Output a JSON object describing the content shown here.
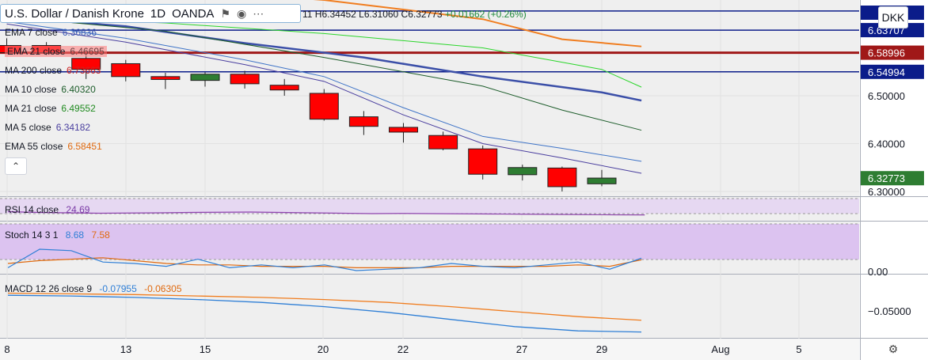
{
  "header": {
    "symbol_title": "U.S. Dollar / Danish Krone",
    "interval": "1D",
    "broker": "OANDA",
    "ohlc": "11  H6.34452  L6.31060  C6.32773",
    "change": "+0.01662 (+0.26%)"
  },
  "currency_badge": "DKK",
  "indicators": [
    {
      "label": "EMA 7 close",
      "value": "6.36836",
      "color": "#3b5bb5"
    },
    {
      "label": "EMA 21 close",
      "value": "6.46695",
      "color": "#6b3f3f"
    },
    {
      "label": "MA 200 close",
      "value": "6.73663",
      "color": "#cc2222"
    },
    {
      "label": "MA 10 close",
      "value": "6.40320",
      "color": "#1c5c2a"
    },
    {
      "label": "MA 21 close",
      "value": "6.49552",
      "color": "#1f8a1f"
    },
    {
      "label": "MA 5 close",
      "value": "6.34182",
      "color": "#4a3f9f"
    },
    {
      "label": "EMA 55 close",
      "value": "6.58451",
      "color": "#e06a10"
    }
  ],
  "price_labels": [
    {
      "text": "6.63707",
      "color": "#0b1c8a"
    },
    {
      "text": "6.58996",
      "color": "#a01818"
    },
    {
      "text": "6.54994",
      "color": "#0b1c8a"
    },
    {
      "text": "6.32773",
      "color": "#2e7d32"
    }
  ],
  "rsi": {
    "label": "RSI 14 close",
    "value": "24.69"
  },
  "stoch": {
    "label": "Stoch 14 3 1",
    "k": "8.68",
    "d": "7.58"
  },
  "macd": {
    "label": "MACD 12 26 close 9",
    "macd": "-0.07955",
    "signal": "-0.06305"
  },
  "chart_data": {
    "type": "candlestick",
    "x_ticks": [
      "8",
      "13",
      "15",
      "20",
      "22",
      "27",
      "29",
      "Aug",
      "5"
    ],
    "y_ticks": [
      "6.30000",
      "6.40000",
      "6.50000"
    ],
    "candles": [
      {
        "open": 6.605,
        "high": 6.62,
        "low": 6.59,
        "close": 6.59
      },
      {
        "open": 6.605,
        "high": 6.612,
        "low": 6.585,
        "close": 6.59
      },
      {
        "open": 6.578,
        "high": 6.585,
        "low": 6.535,
        "close": 6.555
      },
      {
        "open": 6.567,
        "high": 6.575,
        "low": 6.53,
        "close": 6.54
      },
      {
        "open": 6.54,
        "high": 6.548,
        "low": 6.514,
        "close": 6.534
      },
      {
        "open": 6.532,
        "high": 6.549,
        "low": 6.519,
        "close": 6.545
      },
      {
        "open": 6.545,
        "high": 6.552,
        "low": 6.515,
        "close": 6.525
      },
      {
        "open": 6.522,
        "high": 6.535,
        "low": 6.5,
        "close": 6.512
      },
      {
        "open": 6.505,
        "high": 6.514,
        "low": 6.448,
        "close": 6.451
      },
      {
        "open": 6.456,
        "high": 6.468,
        "low": 6.418,
        "close": 6.436
      },
      {
        "open": 6.434,
        "high": 6.443,
        "low": 6.402,
        "close": 6.424
      },
      {
        "open": 6.417,
        "high": 6.425,
        "low": 6.386,
        "close": 6.389
      },
      {
        "open": 6.389,
        "high": 6.396,
        "low": 6.325,
        "close": 6.336
      },
      {
        "open": 6.335,
        "high": 6.356,
        "low": 6.323,
        "close": 6.35
      },
      {
        "open": 6.349,
        "high": 6.352,
        "low": 6.3,
        "close": 6.31
      },
      {
        "open": 6.316,
        "high": 6.345,
        "low": 6.311,
        "close": 6.328
      }
    ],
    "up_color": "#2e7d32",
    "down_color": "#ff0000",
    "lines": [
      {
        "name": "EMA 55",
        "color": "#f07d1f",
        "width": 2,
        "points": [
          [
            6.758,
            0
          ],
          [
            6.718,
            5
          ],
          [
            6.7,
            8
          ],
          [
            6.66,
            12
          ],
          [
            6.618,
            14
          ],
          [
            6.603,
            16
          ]
        ]
      },
      {
        "name": "EMA 21",
        "color": "#3b4fa8",
        "width": 2.5,
        "points": [
          [
            6.665,
            0
          ],
          [
            6.645,
            3
          ],
          [
            6.61,
            6
          ],
          [
            6.58,
            9
          ],
          [
            6.54,
            12
          ],
          [
            6.507,
            15
          ],
          [
            6.49,
            16
          ]
        ]
      },
      {
        "name": "MA 21",
        "color": "#2bd62b",
        "width": 1,
        "points": [
          [
            6.665,
            0
          ],
          [
            6.652,
            4
          ],
          [
            6.63,
            8
          ],
          [
            6.6,
            12
          ],
          [
            6.555,
            15
          ],
          [
            6.518,
            16
          ]
        ]
      },
      {
        "name": "MA 10",
        "color": "#1c5c2a",
        "width": 1,
        "points": [
          [
            6.665,
            0
          ],
          [
            6.635,
            4
          ],
          [
            6.58,
            8
          ],
          [
            6.52,
            12
          ],
          [
            6.47,
            14
          ],
          [
            6.428,
            16
          ]
        ]
      },
      {
        "name": "EMA 7",
        "color": "#3e73c7",
        "width": 1,
        "points": [
          [
            6.655,
            0
          ],
          [
            6.62,
            3
          ],
          [
            6.575,
            6
          ],
          [
            6.54,
            8
          ],
          [
            6.475,
            10
          ],
          [
            6.415,
            12
          ],
          [
            6.39,
            14
          ],
          [
            6.363,
            16
          ]
        ]
      },
      {
        "name": "MA 5",
        "color": "#4a3f9f",
        "width": 1,
        "points": [
          [
            6.65,
            0
          ],
          [
            6.612,
            3
          ],
          [
            6.565,
            6
          ],
          [
            6.53,
            8
          ],
          [
            6.46,
            10
          ],
          [
            6.4,
            12
          ],
          [
            6.37,
            14
          ],
          [
            6.338,
            16
          ]
        ]
      }
    ],
    "hlines": [
      {
        "price": 6.67707,
        "color": "#0b1c8a"
      },
      {
        "price": 6.63707,
        "color": "#0b1c8a"
      },
      {
        "price": 6.58996,
        "color": "#a01818"
      },
      {
        "price": 6.54994,
        "color": "#0b1c8a"
      }
    ],
    "rsi_values": [
      33,
      31,
      30,
      29,
      29.5,
      30,
      31,
      31.5,
      32,
      31,
      30,
      29,
      28,
      28.5,
      28,
      27.5,
      27,
      26.5,
      26,
      25.5,
      25,
      24.69
    ],
    "stoch_k": [
      2,
      15,
      14,
      6,
      5,
      3,
      8,
      2,
      4,
      2,
      4,
      0,
      1,
      2,
      5,
      3,
      2,
      4,
      6,
      1,
      8.68
    ],
    "stoch_d": [
      5,
      7,
      8,
      9,
      7,
      5,
      4,
      4,
      3,
      3,
      3,
      2,
      2,
      2,
      3,
      3,
      3,
      3,
      4,
      3,
      7.58
    ],
    "macd_line": [
      -0.028,
      -0.029,
      -0.031,
      -0.034,
      -0.038,
      -0.044,
      -0.052,
      -0.062,
      -0.072,
      -0.078,
      -0.07955
    ],
    "signal_line": [
      -0.025,
      -0.026,
      -0.027,
      -0.029,
      -0.031,
      -0.034,
      -0.038,
      -0.044,
      -0.051,
      -0.058,
      -0.06305
    ],
    "macd_ticks": [
      "0.00",
      "−0.05000"
    ]
  }
}
